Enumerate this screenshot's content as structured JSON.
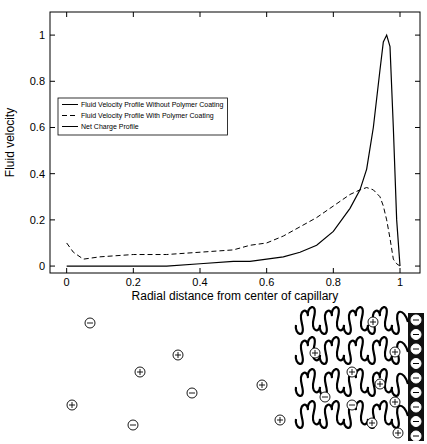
{
  "chart_data": {
    "type": "line",
    "xlabel": "Radial distance from center of capillary",
    "ylabel": "Fluid velocity",
    "x": [
      0,
      0.02,
      0.05,
      0.1,
      0.2,
      0.3,
      0.4,
      0.5,
      0.55,
      0.6,
      0.65,
      0.7,
      0.75,
      0.8,
      0.85,
      0.88,
      0.9,
      0.92,
      0.94,
      0.95,
      0.96,
      0.97,
      0.98,
      0.99,
      1.0
    ],
    "series": [
      {
        "name": "Fluid Velocity Profile Without Polymer Coating",
        "color": "#000000",
        "line_style": "solid",
        "values": [
          null,
          null,
          null,
          null,
          null,
          null,
          null,
          null,
          null,
          null,
          null,
          null,
          null,
          null,
          null,
          null,
          null,
          null,
          null,
          null,
          null,
          null,
          null,
          null,
          null
        ]
      },
      {
        "name": "Fluid Velocity Profile With Polymer Coating",
        "color": "#000000",
        "line_style": "dashed",
        "values": [
          0.1,
          0.06,
          0.03,
          0.04,
          0.05,
          0.05,
          0.06,
          0.07,
          0.09,
          0.1,
          0.13,
          0.17,
          0.21,
          0.26,
          0.31,
          0.33,
          0.34,
          0.33,
          0.3,
          0.26,
          0.2,
          0.12,
          0.03,
          0.01,
          0
        ]
      },
      {
        "name": "Net Charge Profile",
        "color": "#000000",
        "line_style": "solid",
        "values": [
          0,
          0,
          0,
          0,
          0,
          0,
          0.01,
          0.02,
          0.02,
          0.03,
          0.04,
          0.06,
          0.09,
          0.15,
          0.25,
          0.33,
          0.42,
          0.6,
          0.85,
          0.97,
          1.0,
          0.95,
          0.6,
          0.2,
          0
        ]
      }
    ],
    "xlim": [
      -0.05,
      1.06
    ],
    "xticks": [
      0,
      0.2,
      0.4,
      0.6,
      0.8,
      1
    ],
    "ylim": [
      -0.03,
      1.1
    ],
    "yticks": [
      0,
      0.2,
      0.4,
      0.6,
      0.8,
      1
    ],
    "legend": "left",
    "grid": false
  }
}
